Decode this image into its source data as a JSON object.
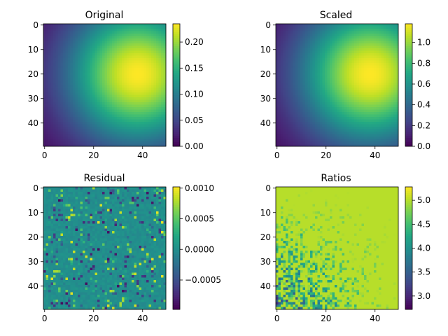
{
  "chart_data": [
    {
      "type": "heatmap",
      "title": "Original",
      "field": "gaussian",
      "grid_size": 50,
      "x_ticks": [
        0,
        20,
        40
      ],
      "y_ticks": [
        0,
        10,
        20,
        30,
        40
      ],
      "colorbar": {
        "vmin": 0.0,
        "vmax": 0.235,
        "ticks": [
          "0.00",
          "0.05",
          "0.10",
          "0.15",
          "0.20"
        ],
        "tick_values": [
          0.0,
          0.05,
          0.1,
          0.15,
          0.2
        ]
      },
      "peak": {
        "x": 38,
        "y": 20,
        "value": 0.235
      },
      "colormap": "viridis"
    },
    {
      "type": "heatmap",
      "title": "Scaled",
      "field": "gaussian",
      "grid_size": 50,
      "x_ticks": [
        0,
        20,
        40
      ],
      "y_ticks": [
        0,
        10,
        20,
        30,
        40
      ],
      "colorbar": {
        "vmin": 0.0,
        "vmax": 1.18,
        "ticks": [
          "0.0",
          "0.2",
          "0.4",
          "0.6",
          "0.8",
          "1.0"
        ],
        "tick_values": [
          0.0,
          0.2,
          0.4,
          0.6,
          0.8,
          1.0
        ]
      },
      "peak": {
        "x": 38,
        "y": 20,
        "value": 1.18
      },
      "colormap": "viridis"
    },
    {
      "type": "heatmap",
      "title": "Residual",
      "field": "noise",
      "grid_size": 50,
      "x_ticks": [
        0,
        20,
        40
      ],
      "y_ticks": [
        0,
        10,
        20,
        30,
        40
      ],
      "colorbar": {
        "vmin": -0.00098,
        "vmax": 0.00102,
        "ticks": [
          "0.0010",
          "0.0005",
          "0.0000",
          "−0.0005"
        ],
        "tick_values": [
          0.001,
          0.0005,
          0.0,
          -0.0005
        ]
      },
      "colormap": "viridis"
    },
    {
      "type": "heatmap",
      "title": "Ratios",
      "field": "ratio",
      "grid_size": 50,
      "x_ticks": [
        0,
        20,
        40
      ],
      "y_ticks": [
        0,
        10,
        20,
        30,
        40
      ],
      "colorbar": {
        "vmin": 2.72,
        "vmax": 5.28,
        "ticks": [
          "5.0",
          "4.5",
          "4.0",
          "3.5",
          "3.0"
        ],
        "tick_values": [
          5.0,
          4.5,
          4.0,
          3.5,
          3.0
        ]
      },
      "dominant_value": 5.0,
      "colormap": "viridis"
    }
  ]
}
